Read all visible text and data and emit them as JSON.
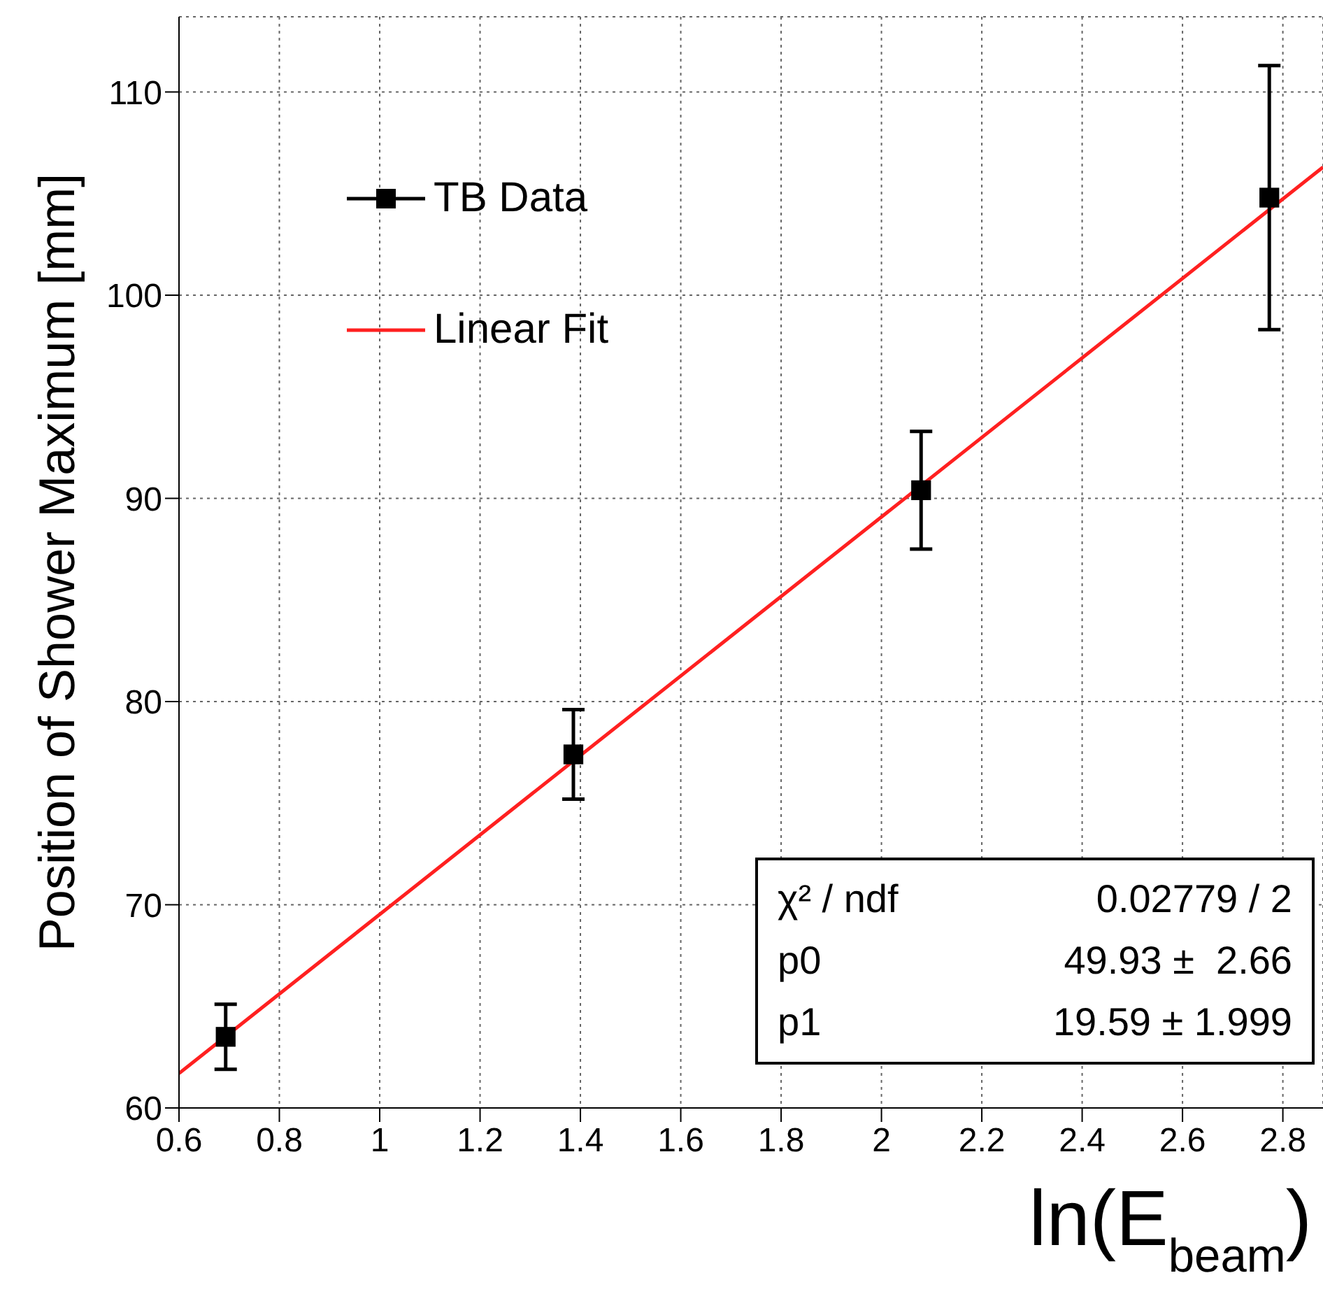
{
  "chart_data": {
    "type": "scatter",
    "xlabel": "ln(E$_{beam}$)",
    "ylabel": "Position of Shower Maximum [mm]",
    "xlim": [
      0.6,
      2.88
    ],
    "xticks": [
      0.6,
      0.8,
      1,
      1.2,
      1.4,
      1.6,
      1.8,
      2,
      2.2,
      2.4,
      2.6,
      2.8
    ],
    "ylim": [
      60,
      113.7
    ],
    "yticks": [
      60,
      70,
      80,
      90,
      100,
      110
    ],
    "series": [
      {
        "name": "TB Data",
        "color": "#000000",
        "marker": "square",
        "x": [
          0.693,
          1.386,
          2.079,
          2.773
        ],
        "values": [
          63.5,
          77.4,
          90.4,
          104.8
        ],
        "errors": [
          1.6,
          2.2,
          2.9,
          6.5
        ]
      },
      {
        "name": "Linear Fit",
        "type": "line",
        "color": "#ff2020",
        "line_style": "solid",
        "marker": "none",
        "x": [
          0.6,
          2.88
        ],
        "values": [
          61.7,
          106.3
        ]
      }
    ],
    "annotations": [
      "χ² / ndf",
      "0.02779 / 2",
      "p0",
      "49.93 ±  2.66",
      "p1",
      "19.59 ± 1.999"
    ],
    "grid": true,
    "legend": "top left"
  }
}
